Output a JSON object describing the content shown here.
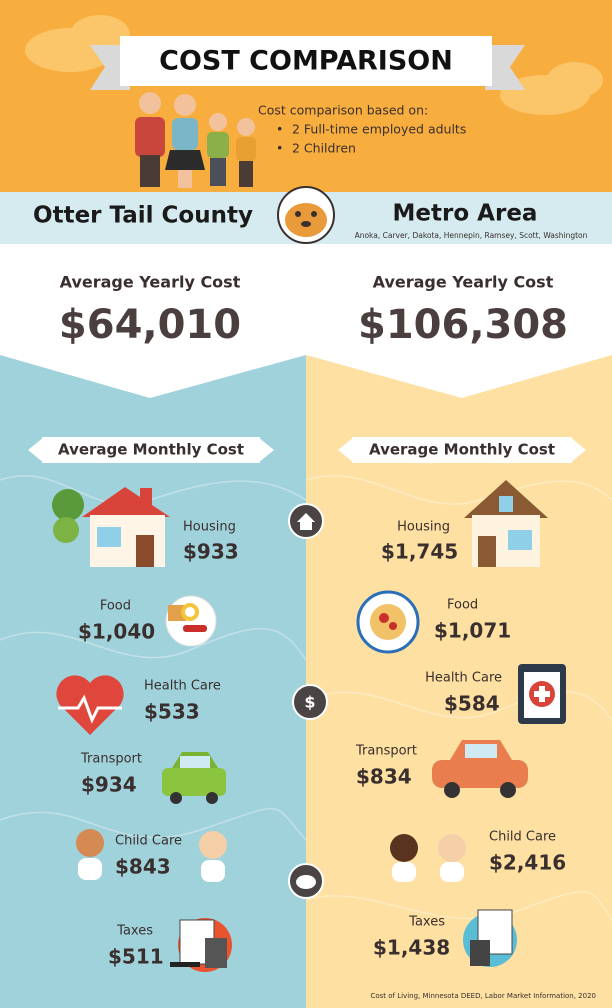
{
  "header": {
    "title": "COST COMPARISON",
    "intro": "Cost comparison based on:",
    "bullets": [
      "2 Full-time employed adults",
      "2 Children"
    ]
  },
  "left": {
    "name": "Otter Tail County",
    "yearly_label": "Average Yearly Cost",
    "yearly_cost": "$64,010",
    "monthly_label": "Average Monthly Cost",
    "items": [
      {
        "label": "Housing",
        "cost": "$933"
      },
      {
        "label": "Food",
        "cost": "$1,040"
      },
      {
        "label": "Health Care",
        "cost": "$533"
      },
      {
        "label": "Transport",
        "cost": "$934"
      },
      {
        "label": "Child Care",
        "cost": "$843"
      },
      {
        "label": "Taxes",
        "cost": "$511"
      }
    ]
  },
  "right": {
    "name": "Metro Area",
    "counties": "Anoka, Carver, Dakota, Hennepin, Ramsey, Scott, Washington",
    "yearly_label": "Average Yearly Cost",
    "yearly_cost": "$106,308",
    "monthly_label": "Average Monthly Cost",
    "items": [
      {
        "label": "Housing",
        "cost": "$1,745"
      },
      {
        "label": "Food",
        "cost": "$1,071"
      },
      {
        "label": "Health Care",
        "cost": "$584"
      },
      {
        "label": "Transport",
        "cost": "$834"
      },
      {
        "label": "Child Care",
        "cost": "$2,416"
      },
      {
        "label": "Taxes",
        "cost": "$1,438"
      }
    ]
  },
  "footer": {
    "source": "Cost of Living, Minnesota DEED, Labor Market Information, 2020"
  }
}
